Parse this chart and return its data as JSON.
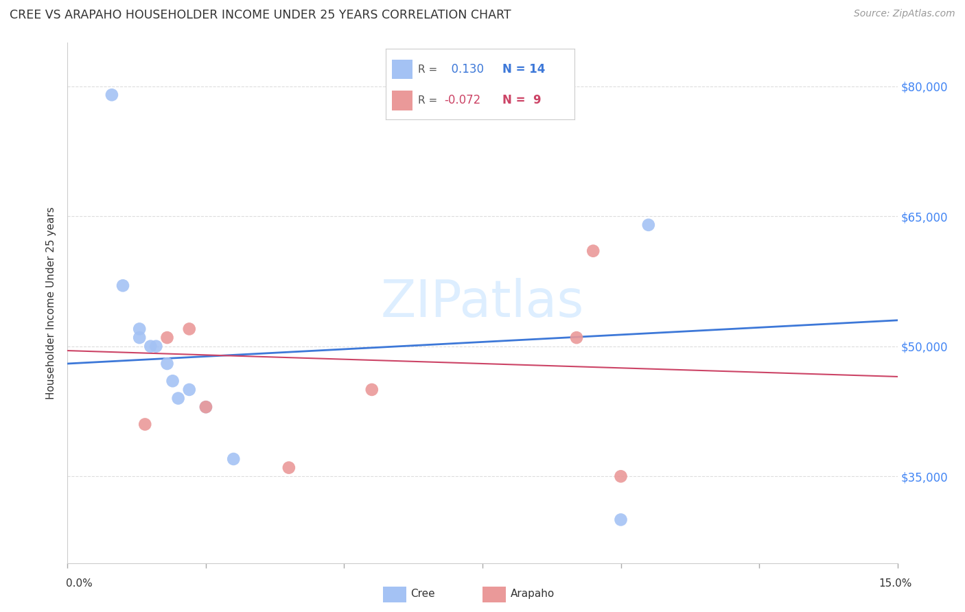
{
  "title": "CREE VS ARAPAHO HOUSEHOLDER INCOME UNDER 25 YEARS CORRELATION CHART",
  "source": "Source: ZipAtlas.com",
  "ylabel": "Householder Income Under 25 years",
  "xlim": [
    0.0,
    0.15
  ],
  "ylim": [
    25000,
    85000
  ],
  "yticks": [
    35000,
    50000,
    65000,
    80000
  ],
  "ytick_labels": [
    "$35,000",
    "$50,000",
    "$65,000",
    "$80,000"
  ],
  "watermark": "ZIPatlas",
  "cree_x": [
    0.008,
    0.01,
    0.013,
    0.013,
    0.015,
    0.016,
    0.018,
    0.019,
    0.02,
    0.022,
    0.025,
    0.03,
    0.1,
    0.105
  ],
  "cree_y": [
    79000,
    57000,
    52000,
    51000,
    50000,
    50000,
    48000,
    46000,
    44000,
    45000,
    43000,
    37000,
    30000,
    64000
  ],
  "arapaho_x": [
    0.018,
    0.022,
    0.025,
    0.055,
    0.092,
    0.095,
    0.014,
    0.04,
    0.1
  ],
  "arapaho_y": [
    51000,
    52000,
    43000,
    45000,
    51000,
    61000,
    41000,
    36000,
    35000
  ],
  "cree_R": 0.13,
  "cree_N": 14,
  "arapaho_R": -0.072,
  "arapaho_N": 9,
  "cree_color": "#a4c2f4",
  "arapaho_color": "#ea9999",
  "cree_line_color": "#3d78d8",
  "arapaho_line_color": "#cc4466",
  "title_color": "#333333",
  "axis_label_color": "#4285f4",
  "source_color": "#999999",
  "watermark_color": "#ddeeff",
  "grid_color": "#dddddd",
  "cree_line_y0": 48000,
  "cree_line_y1": 53000,
  "arapaho_line_y0": 49500,
  "arapaho_line_y1": 46500
}
